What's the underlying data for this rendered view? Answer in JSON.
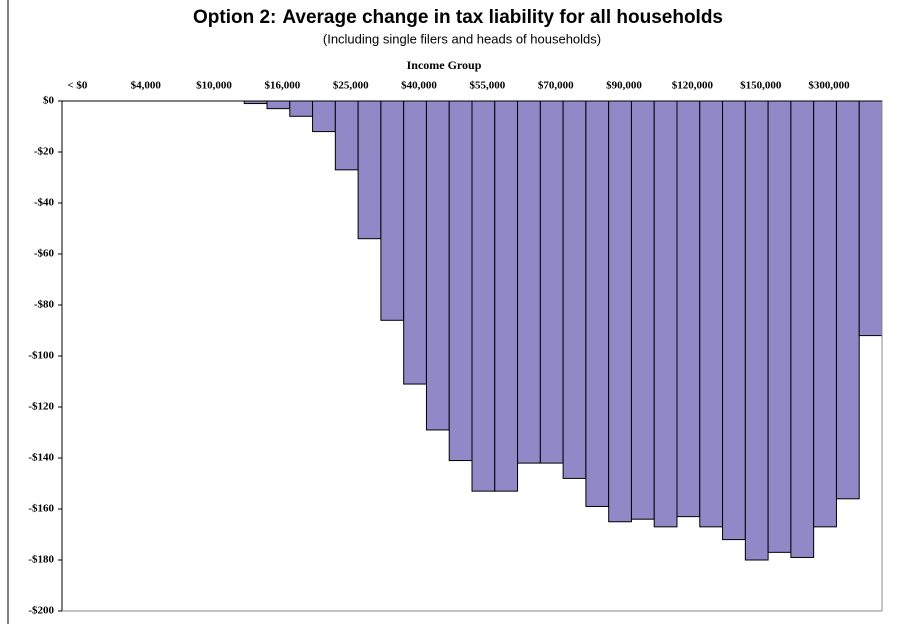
{
  "chart_data": {
    "type": "bar",
    "title_label": "Option 2:",
    "title": "Average change in tax liability for all households",
    "subtitle": "(Including single filers and heads of households)",
    "x_label": "Income Group",
    "categories": [
      "< $0",
      null,
      null,
      "$4,000",
      null,
      null,
      "$10,000",
      null,
      null,
      "$16,000",
      null,
      null,
      "$25,000",
      null,
      null,
      "$40,000",
      null,
      null,
      "$55,000",
      null,
      null,
      "$70,000",
      null,
      null,
      "$90,000",
      null,
      null,
      "$120,000",
      null,
      null,
      "$150,000",
      null,
      null,
      "$300,000",
      null,
      null
    ],
    "values": [
      0,
      0,
      0,
      0,
      0,
      0,
      0,
      0,
      -1,
      -3,
      -6,
      -12,
      -27,
      -54,
      -86,
      -111,
      -129,
      -141,
      -153,
      -153,
      -142,
      -142,
      -148,
      -159,
      -165,
      -164,
      -167,
      -163,
      -167,
      -172,
      -180,
      -177,
      -179,
      -167,
      -156,
      -92
    ],
    "color": "#9188c8",
    "ylim": [
      -200,
      0
    ],
    "yticks": [
      {
        "value": 0,
        "label": "$0"
      },
      {
        "value": -20,
        "label": "-$20"
      },
      {
        "value": -40,
        "label": "-$40"
      },
      {
        "value": -60,
        "label": "-$60"
      },
      {
        "value": -80,
        "label": "-$80"
      },
      {
        "value": -100,
        "label": "-$100"
      },
      {
        "value": -120,
        "label": "-$120"
      },
      {
        "value": -140,
        "label": "-$140"
      },
      {
        "value": -160,
        "label": "-$160"
      },
      {
        "value": -180,
        "label": "-$180"
      },
      {
        "value": -200,
        "label": "-$200"
      }
    ],
    "grid": false
  }
}
